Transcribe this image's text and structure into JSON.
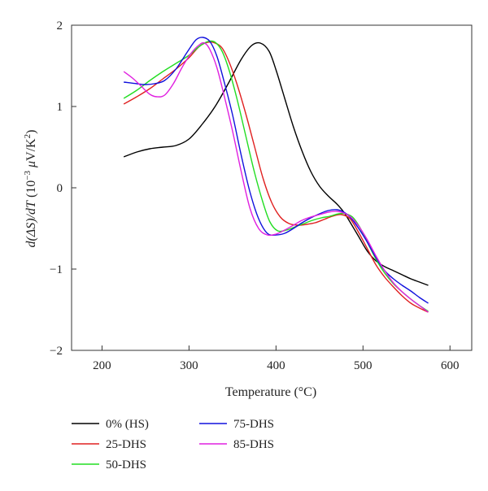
{
  "chart_data": {
    "type": "line",
    "xlabel": "Temperature (°C)",
    "ylabel_parts": {
      "d1": "d(ΔS)/",
      "d2": "d",
      "T": "T",
      "open": " (10",
      "exp": "−3",
      "mu": " μ",
      "unit": "V/K",
      "sq": "2",
      "close": ")"
    },
    "xlim": [
      165,
      625
    ],
    "ylim": [
      -2,
      2
    ],
    "x_ticks": [
      "200",
      "300",
      "400",
      "500",
      "600"
    ],
    "y_ticks": [
      "2",
      "1",
      "0",
      "−1",
      "−2"
    ],
    "grid": false,
    "legend_position": "bottom-left",
    "series": [
      {
        "name": "0% (HS)",
        "color": "#000000",
        "points": [
          [
            225,
            0.38
          ],
          [
            240,
            0.44
          ],
          [
            255,
            0.48
          ],
          [
            270,
            0.5
          ],
          [
            285,
            0.52
          ],
          [
            300,
            0.6
          ],
          [
            315,
            0.78
          ],
          [
            330,
            1.0
          ],
          [
            345,
            1.28
          ],
          [
            360,
            1.58
          ],
          [
            372,
            1.75
          ],
          [
            382,
            1.78
          ],
          [
            392,
            1.68
          ],
          [
            400,
            1.45
          ],
          [
            410,
            1.1
          ],
          [
            420,
            0.75
          ],
          [
            430,
            0.45
          ],
          [
            440,
            0.2
          ],
          [
            450,
            0.02
          ],
          [
            460,
            -0.1
          ],
          [
            470,
            -0.2
          ],
          [
            478,
            -0.3
          ],
          [
            485,
            -0.42
          ],
          [
            495,
            -0.6
          ],
          [
            505,
            -0.78
          ],
          [
            515,
            -0.9
          ],
          [
            525,
            -0.97
          ],
          [
            535,
            -1.02
          ],
          [
            545,
            -1.07
          ],
          [
            555,
            -1.12
          ],
          [
            565,
            -1.16
          ],
          [
            575,
            -1.2
          ]
        ]
      },
      {
        "name": "25-DHS",
        "color": "#e02020",
        "points": [
          [
            225,
            1.03
          ],
          [
            240,
            1.12
          ],
          [
            255,
            1.22
          ],
          [
            270,
            1.34
          ],
          [
            285,
            1.46
          ],
          [
            300,
            1.6
          ],
          [
            312,
            1.74
          ],
          [
            322,
            1.79
          ],
          [
            330,
            1.78
          ],
          [
            338,
            1.72
          ],
          [
            346,
            1.55
          ],
          [
            355,
            1.28
          ],
          [
            365,
            0.92
          ],
          [
            375,
            0.52
          ],
          [
            385,
            0.12
          ],
          [
            395,
            -0.18
          ],
          [
            405,
            -0.36
          ],
          [
            415,
            -0.44
          ],
          [
            425,
            -0.46
          ],
          [
            435,
            -0.45
          ],
          [
            445,
            -0.43
          ],
          [
            455,
            -0.39
          ],
          [
            465,
            -0.35
          ],
          [
            475,
            -0.33
          ],
          [
            485,
            -0.38
          ],
          [
            495,
            -0.55
          ],
          [
            505,
            -0.75
          ],
          [
            515,
            -0.95
          ],
          [
            525,
            -1.1
          ],
          [
            535,
            -1.22
          ],
          [
            545,
            -1.33
          ],
          [
            555,
            -1.42
          ],
          [
            565,
            -1.48
          ],
          [
            575,
            -1.53
          ]
        ]
      },
      {
        "name": "50-DHS",
        "color": "#22dd22",
        "points": [
          [
            225,
            1.1
          ],
          [
            240,
            1.2
          ],
          [
            255,
            1.32
          ],
          [
            270,
            1.43
          ],
          [
            285,
            1.53
          ],
          [
            300,
            1.63
          ],
          [
            312,
            1.74
          ],
          [
            322,
            1.8
          ],
          [
            330,
            1.79
          ],
          [
            338,
            1.68
          ],
          [
            346,
            1.45
          ],
          [
            355,
            1.1
          ],
          [
            365,
            0.65
          ],
          [
            375,
            0.2
          ],
          [
            385,
            -0.18
          ],
          [
            393,
            -0.42
          ],
          [
            402,
            -0.53
          ],
          [
            412,
            -0.52
          ],
          [
            422,
            -0.48
          ],
          [
            432,
            -0.44
          ],
          [
            442,
            -0.4
          ],
          [
            452,
            -0.37
          ],
          [
            462,
            -0.35
          ],
          [
            472,
            -0.32
          ],
          [
            480,
            -0.32
          ],
          [
            488,
            -0.36
          ],
          [
            496,
            -0.48
          ],
          [
            505,
            -0.67
          ],
          [
            515,
            -0.88
          ],
          [
            525,
            -1.05
          ],
          [
            535,
            -1.18
          ],
          [
            545,
            -1.28
          ],
          [
            555,
            -1.37
          ],
          [
            565,
            -1.45
          ],
          [
            575,
            -1.52
          ]
        ]
      },
      {
        "name": "75-DHS",
        "color": "#1010dd",
        "points": [
          [
            225,
            1.3
          ],
          [
            240,
            1.28
          ],
          [
            250,
            1.27
          ],
          [
            260,
            1.28
          ],
          [
            272,
            1.32
          ],
          [
            285,
            1.46
          ],
          [
            298,
            1.67
          ],
          [
            308,
            1.82
          ],
          [
            316,
            1.85
          ],
          [
            324,
            1.8
          ],
          [
            332,
            1.62
          ],
          [
            340,
            1.32
          ],
          [
            350,
            0.9
          ],
          [
            360,
            0.4
          ],
          [
            370,
            -0.05
          ],
          [
            380,
            -0.38
          ],
          [
            390,
            -0.56
          ],
          [
            400,
            -0.58
          ],
          [
            410,
            -0.56
          ],
          [
            420,
            -0.5
          ],
          [
            430,
            -0.43
          ],
          [
            440,
            -0.37
          ],
          [
            450,
            -0.32
          ],
          [
            460,
            -0.28
          ],
          [
            470,
            -0.27
          ],
          [
            478,
            -0.3
          ],
          [
            486,
            -0.37
          ],
          [
            495,
            -0.5
          ],
          [
            505,
            -0.67
          ],
          [
            515,
            -0.86
          ],
          [
            525,
            -1.02
          ],
          [
            535,
            -1.12
          ],
          [
            545,
            -1.2
          ],
          [
            555,
            -1.27
          ],
          [
            565,
            -1.35
          ],
          [
            575,
            -1.42
          ]
        ]
      },
      {
        "name": "85-DHS",
        "color": "#e020e0",
        "points": [
          [
            225,
            1.43
          ],
          [
            235,
            1.35
          ],
          [
            245,
            1.25
          ],
          [
            255,
            1.15
          ],
          [
            263,
            1.12
          ],
          [
            272,
            1.14
          ],
          [
            282,
            1.28
          ],
          [
            292,
            1.48
          ],
          [
            302,
            1.65
          ],
          [
            312,
            1.76
          ],
          [
            318,
            1.78
          ],
          [
            324,
            1.7
          ],
          [
            332,
            1.48
          ],
          [
            340,
            1.15
          ],
          [
            350,
            0.7
          ],
          [
            360,
            0.2
          ],
          [
            370,
            -0.25
          ],
          [
            380,
            -0.5
          ],
          [
            390,
            -0.58
          ],
          [
            400,
            -0.57
          ],
          [
            410,
            -0.52
          ],
          [
            420,
            -0.46
          ],
          [
            430,
            -0.4
          ],
          [
            440,
            -0.36
          ],
          [
            450,
            -0.33
          ],
          [
            460,
            -0.3
          ],
          [
            470,
            -0.29
          ],
          [
            478,
            -0.31
          ],
          [
            486,
            -0.36
          ],
          [
            495,
            -0.47
          ],
          [
            505,
            -0.64
          ],
          [
            515,
            -0.84
          ],
          [
            525,
            -1.02
          ],
          [
            535,
            -1.17
          ],
          [
            545,
            -1.28
          ],
          [
            555,
            -1.37
          ],
          [
            565,
            -1.45
          ],
          [
            575,
            -1.53
          ]
        ]
      }
    ]
  }
}
